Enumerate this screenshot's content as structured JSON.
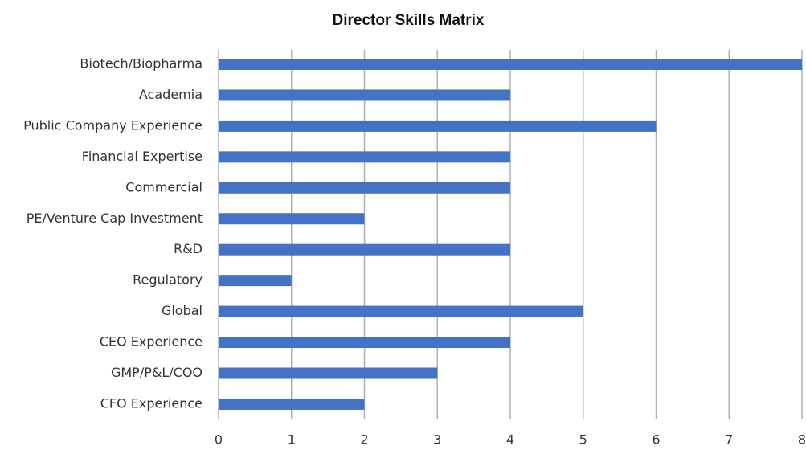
{
  "chart_data": {
    "type": "bar",
    "orientation": "horizontal",
    "title": "Director Skills Matrix",
    "categories": [
      "Biotech/Biopharma",
      "Academia",
      "Public Company Experience",
      "Financial Expertise",
      "Commercial",
      "PE/Venture Cap Investment",
      "R&D",
      "Regulatory",
      "Global",
      "CEO Experience",
      "GMP/P&L/COO",
      "CFO Experience"
    ],
    "values": [
      8,
      4,
      6,
      4,
      4,
      2,
      4,
      1,
      5,
      4,
      3,
      2
    ],
    "color": "#4472c4",
    "xlim": [
      0,
      8
    ],
    "xticks": [
      0,
      1,
      2,
      3,
      4,
      5,
      6,
      7,
      8
    ],
    "grid": true
  }
}
